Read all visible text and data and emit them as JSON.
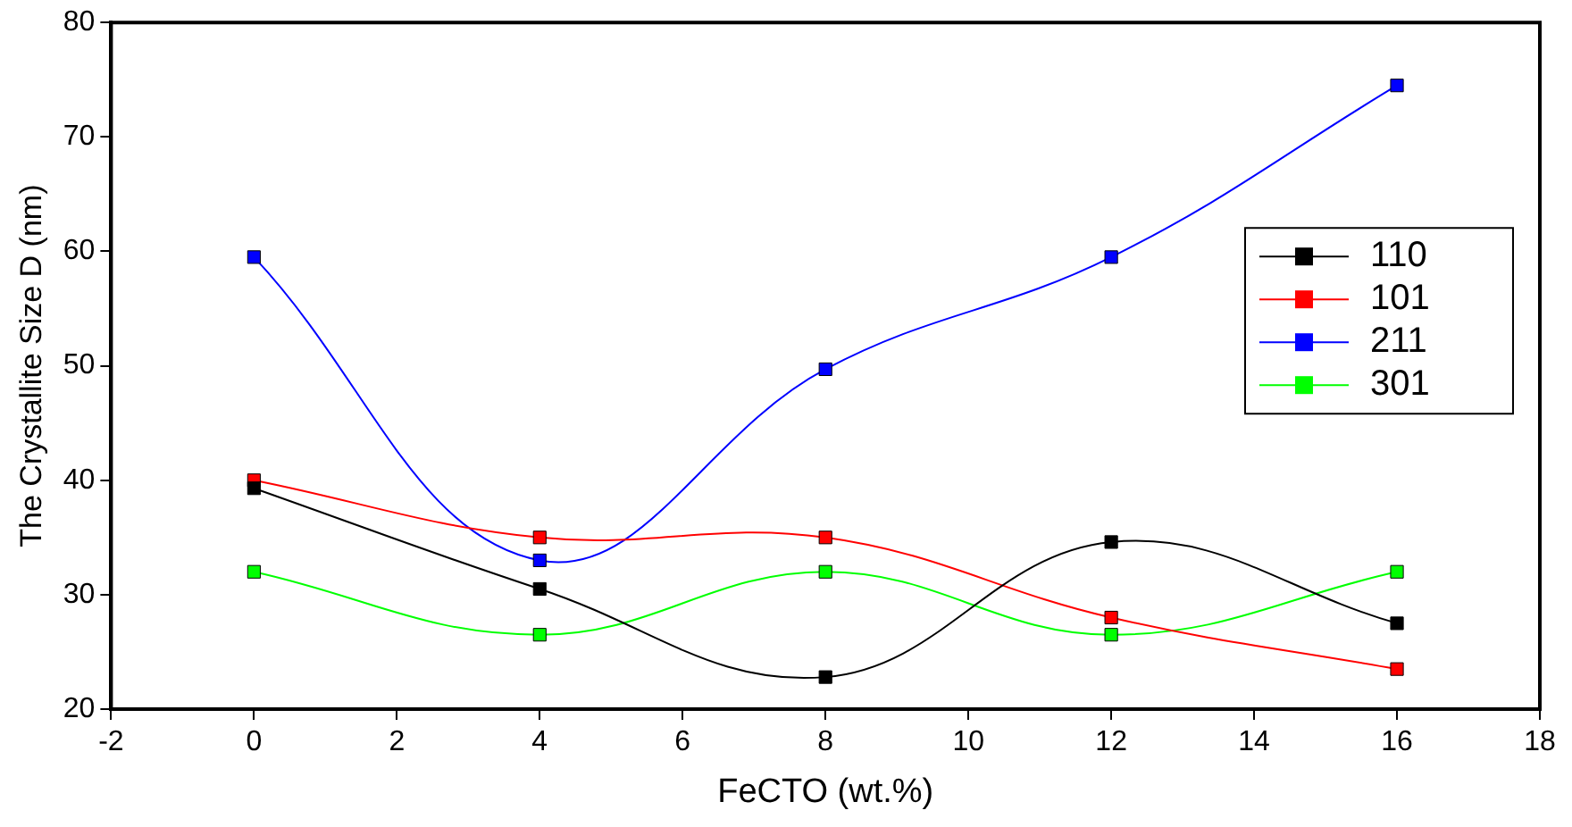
{
  "chart_data": {
    "type": "line",
    "xlabel": "FeCTO (wt.%)",
    "ylabel": "The Crystallite Size D (nm)",
    "x": [
      0,
      4,
      8,
      12,
      16
    ],
    "series": [
      {
        "name": "110",
        "color": "#000000",
        "values": [
          39.3,
          30.5,
          22.8,
          34.6,
          27.5
        ]
      },
      {
        "name": "101",
        "color": "#ff0000",
        "values": [
          40,
          35,
          35,
          28,
          23.5
        ]
      },
      {
        "name": "211",
        "color": "#0000ff",
        "values": [
          59.5,
          33,
          49.7,
          59.5,
          74.5
        ]
      },
      {
        "name": "301",
        "color": "#00ff00",
        "values": [
          32,
          26.5,
          32,
          26.5,
          32
        ]
      }
    ],
    "xlim": [
      -2,
      18
    ],
    "xticks": [
      -2,
      0,
      2,
      4,
      6,
      8,
      10,
      12,
      14,
      16,
      18
    ],
    "ylim": [
      20,
      80
    ],
    "yticks": [
      20,
      30,
      40,
      50,
      60,
      70,
      80
    ],
    "grid": false,
    "legend": "right",
    "marker": "square",
    "line_style": "solid"
  }
}
